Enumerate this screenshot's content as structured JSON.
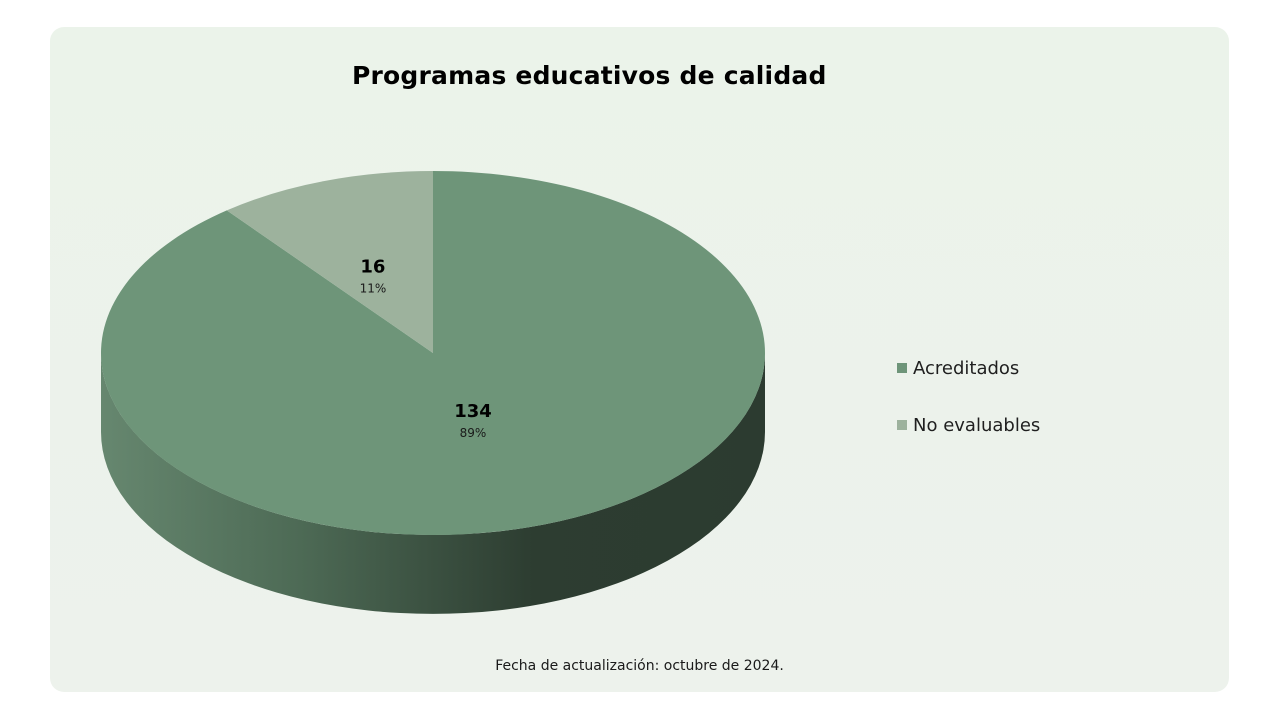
{
  "chart_data": {
    "type": "pie",
    "title": "Programas educativos de calidad",
    "categories": [
      "Acreditados",
      "No evaluables"
    ],
    "values": [
      134,
      16
    ],
    "percent_labels": [
      "89%",
      "11%"
    ],
    "colors": [
      "#6e9579",
      "#9db29d"
    ],
    "side_colors": [
      "#2e3d31",
      "#66876f"
    ],
    "legend_position": "right",
    "style": "3d-pie"
  },
  "footnote": "Fecha de actualización: octubre de 2024."
}
